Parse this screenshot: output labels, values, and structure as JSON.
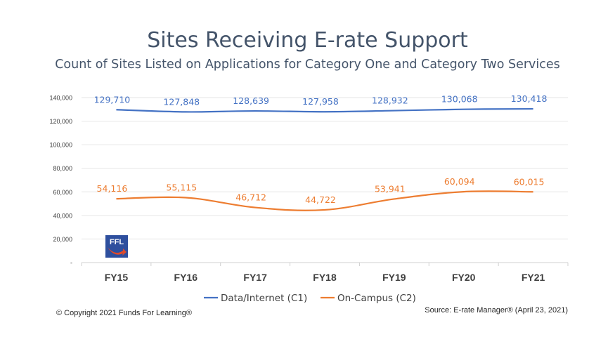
{
  "title": "Sites Receiving E-rate Support",
  "subtitle": "Count of Sites Listed on Applications for Category One and Category Two Services",
  "footer": {
    "copyright": "© Copyright 2021 Funds For Learning®",
    "source": "Source: E-rate Manager® (April 23, 2021)"
  },
  "logo": {
    "text": "FFL",
    "icon": "ffl-logo-icon"
  },
  "colors": {
    "c1": "#4472c4",
    "c2": "#ed7d31",
    "axis_text": "#404040",
    "grid": "#e6e6e6"
  },
  "chart_data": {
    "type": "line",
    "categories": [
      "FY15",
      "FY16",
      "FY17",
      "FY18",
      "FY19",
      "FY20",
      "FY21"
    ],
    "y_ticks": [
      "-",
      "20,000",
      "40,000",
      "60,000",
      "80,000",
      "100,000",
      "120,000",
      "140,000"
    ],
    "ylim": [
      0,
      140000
    ],
    "grid": true,
    "legend": "bottom",
    "series": [
      {
        "name": "Data/Internet (C1)",
        "color": "#4472c4",
        "values": [
          129710,
          127848,
          128639,
          127958,
          128932,
          130068,
          130418
        ],
        "labels": [
          "129,710",
          "127,848",
          "128,639",
          "127,958",
          "128,932",
          "130,068",
          "130,418"
        ]
      },
      {
        "name": "On-Campus (C2)",
        "color": "#ed7d31",
        "values": [
          54116,
          55115,
          46712,
          44722,
          53941,
          60094,
          60015
        ],
        "labels": [
          "54,116",
          "55,115",
          "46,712",
          "44,722",
          "53,941",
          "60,094",
          "60,015"
        ]
      }
    ]
  }
}
